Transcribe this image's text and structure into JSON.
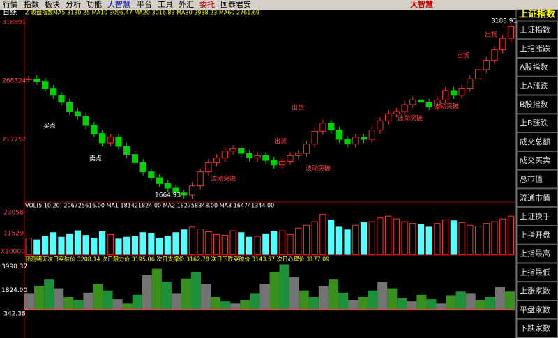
{
  "menu": {
    "items": [
      "行情",
      "指数",
      "板块",
      "分析",
      "功能",
      "大智慧",
      "平台",
      "工具",
      "外汇",
      "委托",
      "国泰君安"
    ],
    "logo": "大智慧"
  },
  "sidebar": {
    "title": "上证指数",
    "buttons": [
      "上证指数",
      "上指涨跌",
      "A股指数",
      "上A涨跌",
      "B股指数",
      "上B涨跌",
      "成交总额",
      "成交买卖",
      "总市值",
      "流通市值",
      "上证换手",
      "上指开盘",
      "上指最高",
      "上指最低",
      "上涨家数",
      "平盘家数",
      "下跌家数"
    ]
  },
  "price_panel": {
    "period": "日线",
    "ma_text": "Z 收盘指数MA5 3130.25 MA10 3096.47 MA20 3016.83 MA30 2938.23 MA60 2761.69",
    "ylim": [
      1640,
      3236
    ],
    "yticks": [
      {
        "value": 3188.91,
        "label": "318891"
      },
      {
        "value": 2683.24,
        "label": "268324"
      },
      {
        "value": 2177.57,
        "label": "217757"
      }
    ],
    "closes": [
      2700,
      2680,
      2620,
      2560,
      2500,
      2420,
      2380,
      2300,
      2230,
      2150,
      2200,
      2120,
      2050,
      1980,
      1900,
      1850,
      1800,
      1760,
      1720,
      1700,
      1780,
      1900,
      1980,
      2020,
      2080,
      2100,
      2060,
      2020,
      2040,
      2000,
      1960,
      1990,
      2040,
      2060,
      2140,
      2250,
      2320,
      2260,
      2180,
      2140,
      2200,
      2180,
      2260,
      2340,
      2400,
      2420,
      2480,
      2520,
      2500,
      2460,
      2520,
      2600,
      2560,
      2620,
      2700,
      2780,
      2860,
      2950,
      3050,
      3150
    ],
    "annotations": [
      "买点",
      "卖点",
      "出货",
      "出货",
      "出货",
      "出货",
      "波动突破",
      "波动突破",
      "波动突破",
      "波动突破",
      "1664.93",
      "3188.91"
    ]
  },
  "volume_panel": {
    "header": "VOL(5,10,20) 206725616.00 MA1 181421824.00 MA2 182758848.00 MA3 164741344.00",
    "unit": "X10000",
    "ylim": [
      0,
      28000
    ],
    "yticks": [
      23058,
      11529
    ],
    "volumes": [
      9000,
      8000,
      10000,
      12000,
      9500,
      11000,
      13000,
      10500,
      9000,
      12500,
      11000,
      8500,
      9500,
      10000,
      12000,
      11500,
      9000,
      10000,
      12000,
      13500,
      15000,
      14000,
      12500,
      11000,
      10500,
      13000,
      12000,
      9500,
      10000,
      11000,
      12500,
      13000,
      11000,
      14500,
      16000,
      18000,
      22000,
      19000,
      15000,
      13500,
      16000,
      17500,
      18000,
      20000,
      21000,
      19500,
      18000,
      17000,
      16500,
      15000,
      17000,
      19000,
      18500,
      17500,
      16000,
      15500,
      17000,
      18000,
      19500,
      21000
    ]
  },
  "indicator_panel": {
    "header": "预测明天次日突破价 3208.14 次日阻力价 3195.06 次日支撑价 3162.78 次日下跌突破价 3143.57 次日心理价 3177.09",
    "ylim": [
      -2600,
      5000
    ],
    "yticks": [
      3990.37,
      {
        "value": 1824,
        "label": "1824.00"
      },
      -342.38
    ],
    "values": [
      1500,
      2200,
      2800,
      2000,
      1200,
      900,
      1600,
      2400,
      1800,
      1000,
      600,
      1400,
      3200,
      3800,
      2600,
      1500,
      2900,
      3500,
      2400,
      1200,
      800,
      600,
      900,
      1500,
      2400,
      3500,
      4200,
      3000,
      1800,
      1200,
      2200,
      2800,
      1600,
      900,
      1200,
      1800,
      2600,
      2000,
      1100,
      800,
      1400,
      1000,
      600,
      1300,
      1700,
      1500,
      900,
      1200,
      2100,
      1700
    ]
  }
}
